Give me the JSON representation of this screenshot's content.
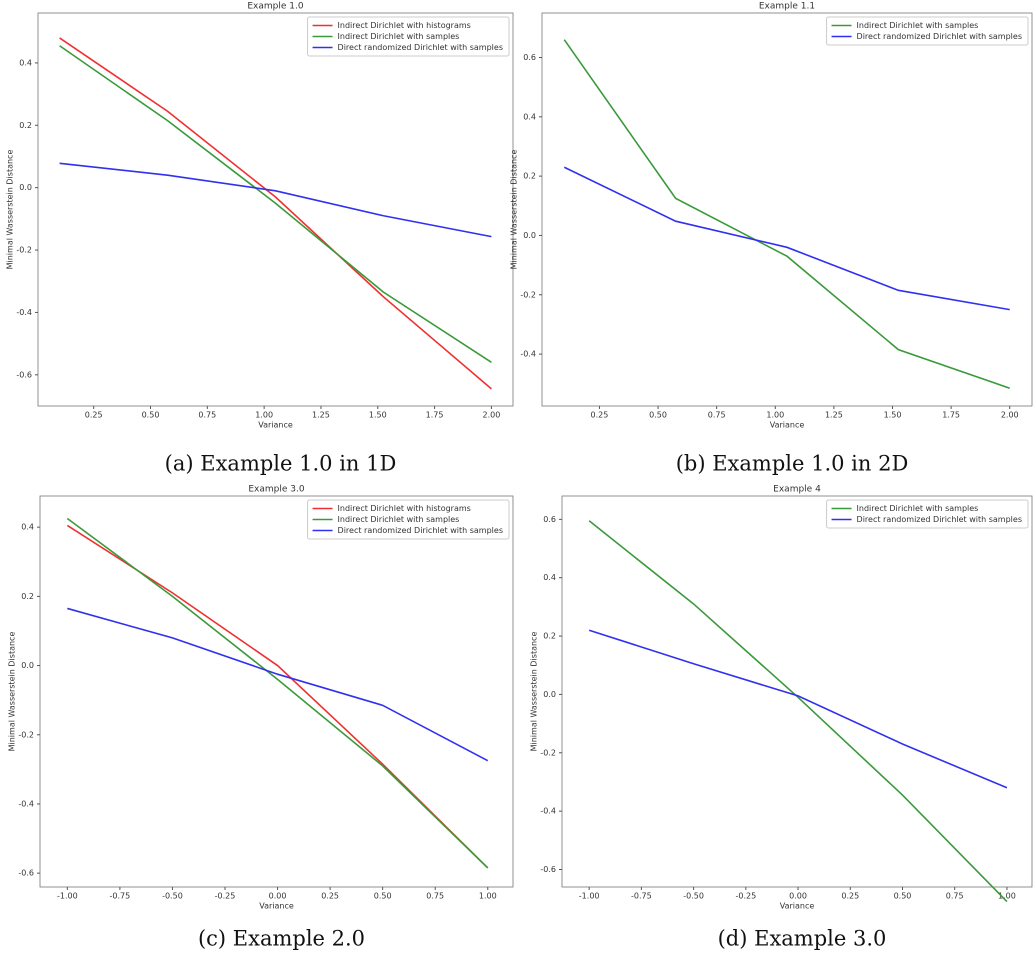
{
  "chart_data": [
    {
      "type": "line",
      "title": "Example 1.0",
      "caption": "(a) Example 1.0 in 1D",
      "xlabel": "Variance",
      "ylabel": "Minimal Wasserstein Distance",
      "x": [
        0.1,
        0.575,
        1.05,
        1.525,
        2.0
      ],
      "series": [
        {
          "name": "Indirect Dirichlet with histograms",
          "color": "#f03030",
          "values": [
            0.48,
            0.245,
            -0.03,
            -0.35,
            -0.645
          ]
        },
        {
          "name": "Indirect Dirichlet with samples",
          "color": "#3a9a3a",
          "values": [
            0.455,
            0.215,
            -0.05,
            -0.335,
            -0.56
          ]
        },
        {
          "name": "Direct randomized Dirichlet with samples",
          "color": "#3030f0",
          "values": [
            0.078,
            0.04,
            -0.01,
            -0.09,
            -0.157
          ]
        }
      ],
      "xlim": [
        0.005,
        2.095
      ],
      "ylim": [
        -0.7,
        0.56
      ],
      "xticks": [
        0.25,
        {
          "value": 0.5,
          "label": "0.50"
        },
        0.75,
        {
          "value": 1,
          "label": "1.00"
        },
        1.25,
        {
          "value": 1.5,
          "label": "1.50"
        },
        1.75,
        {
          "value": 2,
          "label": "2.00"
        }
      ],
      "yticks": [
        -0.6,
        -0.4,
        -0.2,
        {
          "value": 0,
          "label": "0.0"
        },
        0.2,
        0.4
      ],
      "legend": "upper right"
    },
    {
      "type": "line",
      "title": "Example 1.1",
      "caption": "(b) Example 1.0 in 2D",
      "xlabel": "Variance",
      "ylabel": "Minimal Wasserstein Distance",
      "x": [
        0.1,
        0.575,
        1.05,
        1.525,
        2.0
      ],
      "series": [
        {
          "name": "Indirect Dirichlet with samples",
          "color": "#3a9a3a",
          "values": [
            0.66,
            0.125,
            -0.07,
            -0.385,
            -0.515
          ]
        },
        {
          "name": "Direct randomized Dirichlet with samples",
          "color": "#3030f0",
          "values": [
            0.23,
            0.048,
            -0.04,
            -0.185,
            -0.25
          ]
        }
      ],
      "xlim": [
        0.005,
        2.095
      ],
      "ylim": [
        -0.575,
        0.75
      ],
      "xticks": [
        0.25,
        {
          "value": 0.5,
          "label": "0.50"
        },
        0.75,
        {
          "value": 1,
          "label": "1.00"
        },
        1.25,
        {
          "value": 1.5,
          "label": "1.50"
        },
        1.75,
        {
          "value": 2,
          "label": "2.00"
        }
      ],
      "yticks": [
        -0.4,
        -0.2,
        {
          "value": 0,
          "label": "0.0"
        },
        0.2,
        0.4,
        0.6
      ],
      "legend": "upper right"
    },
    {
      "type": "line",
      "title": "Example 3.0",
      "caption": "(c) Example 2.0",
      "xlabel": "Variance",
      "ylabel": "Minimal Wasserstein Distance",
      "x": [
        -1,
        -0.5,
        0,
        0.5,
        1
      ],
      "series": [
        {
          "name": "Indirect Dirichlet with histograms",
          "color": "#f03030",
          "values": [
            0.405,
            0.21,
            0.0,
            -0.285,
            -0.585
          ]
        },
        {
          "name": "Indirect Dirichlet with samples",
          "color": "#3a9a3a",
          "values": [
            0.425,
            0.2,
            -0.04,
            -0.29,
            -0.585
          ]
        },
        {
          "name": "Direct randomized Dirichlet with samples",
          "color": "#3030f0",
          "values": [
            0.165,
            0.08,
            -0.025,
            -0.115,
            -0.275
          ]
        }
      ],
      "xlim": [
        -1.13,
        1.12
      ],
      "ylim": [
        -0.64,
        0.49
      ],
      "xticks": [
        {
          "value": -1,
          "label": "-1.00"
        },
        -0.75,
        {
          "value": -0.5,
          "label": "-0.50"
        },
        -0.25,
        {
          "value": 0,
          "label": "0.00"
        },
        0.25,
        {
          "value": 0.5,
          "label": "0.50"
        },
        0.75,
        {
          "value": 1,
          "label": "1.00"
        }
      ],
      "yticks": [
        -0.6,
        -0.4,
        -0.2,
        {
          "value": 0,
          "label": "0.0"
        },
        0.2,
        0.4
      ],
      "legend": "upper right"
    },
    {
      "type": "line",
      "title": "Example 4",
      "caption": "(d) Example 3.0",
      "xlabel": "Variance",
      "ylabel": "Minimal Wasserstein Distance",
      "x": [
        -1,
        -0.5,
        0,
        0.5,
        1
      ],
      "series": [
        {
          "name": "Indirect Dirichlet with samples",
          "color": "#3a9a3a",
          "values": [
            0.595,
            0.31,
            -0.01,
            -0.345,
            -0.71
          ]
        },
        {
          "name": "Direct randomized Dirichlet with samples",
          "color": "#3030f0",
          "values": [
            0.22,
            0.105,
            -0.005,
            -0.17,
            -0.32
          ]
        }
      ],
      "xlim": [
        -1.13,
        1.12
      ],
      "ylim": [
        -0.66,
        0.68
      ],
      "xticks": [
        {
          "value": -1,
          "label": "-1.00"
        },
        -0.75,
        {
          "value": -0.5,
          "label": "-0.50"
        },
        -0.25,
        {
          "value": 0,
          "label": "0.00"
        },
        0.25,
        {
          "value": 0.5,
          "label": "0.50"
        },
        0.75,
        {
          "value": 1,
          "label": "1.00"
        }
      ],
      "yticks": [
        -0.6,
        -0.4,
        -0.2,
        {
          "value": 0,
          "label": "0.0"
        },
        0.2,
        0.4,
        0.6
      ],
      "legend": "upper right"
    }
  ]
}
